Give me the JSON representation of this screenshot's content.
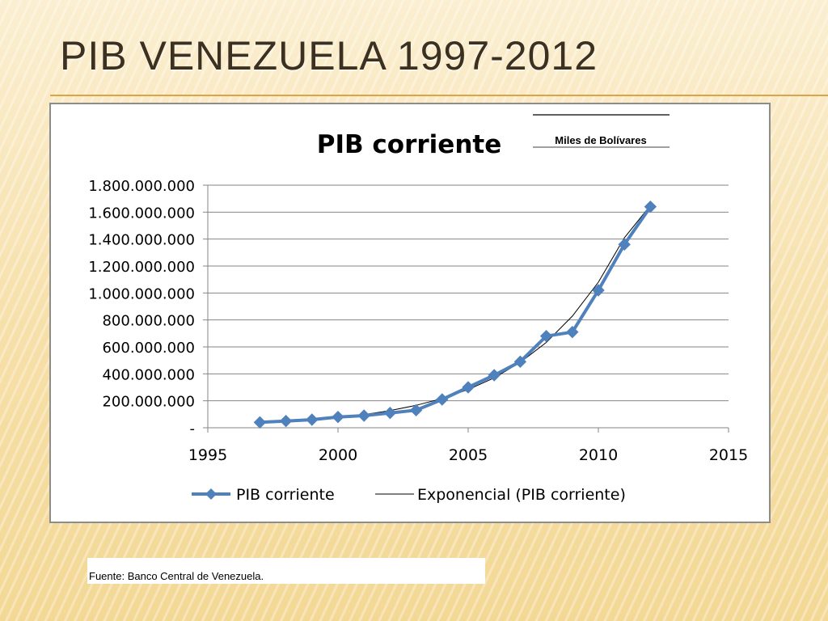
{
  "slide": {
    "title": "PIB VENEZUELA 1997-2012",
    "source": "Fuente: Banco Central de Venezuela."
  },
  "colors": {
    "series": "#4f81bd",
    "trend": "#000000",
    "grid": "#868686",
    "title_accent": "#d9a44a"
  },
  "chart_data": {
    "type": "line",
    "title": "PIB corriente",
    "unit_label": "Miles de Bolívares",
    "xlim": [
      1995,
      2015
    ],
    "ylim": [
      0,
      1800000000
    ],
    "x_ticks": [
      "1995",
      "2000",
      "2005",
      "2010",
      "2015"
    ],
    "y_ticks": [
      "-",
      "200.000.000",
      "400.000.000",
      "600.000.000",
      "800.000.000",
      "1.000.000.000",
      "1.200.000.000",
      "1.400.000.000",
      "1.600.000.000",
      "1.800.000.000"
    ],
    "grid": true,
    "legend_position": "bottom",
    "series": [
      {
        "name": "PIB corriente",
        "marker": "diamond",
        "x": [
          1997,
          1998,
          1999,
          2000,
          2001,
          2002,
          2003,
          2004,
          2005,
          2006,
          2007,
          2008,
          2009,
          2010,
          2011,
          2012
        ],
        "y": [
          40000000,
          50000000,
          60000000,
          80000000,
          90000000,
          110000000,
          130000000,
          210000000,
          300000000,
          390000000,
          490000000,
          680000000,
          710000000,
          1020000000,
          1360000000,
          1640000000
        ]
      }
    ],
    "trendline": {
      "name": "Exponencial (PIB corriente)",
      "type": "exponential",
      "x": [
        1997,
        1998,
        1999,
        2000,
        2001,
        2002,
        2003,
        2004,
        2005,
        2006,
        2007,
        2008,
        2009,
        2010,
        2011,
        2012
      ],
      "y": [
        33000000,
        43000000,
        57000000,
        75000000,
        97000000,
        127000000,
        166000000,
        217000000,
        283000000,
        370000000,
        485000000,
        633000000,
        828000000,
        1080000000,
        1410000000,
        1650000000
      ]
    }
  }
}
